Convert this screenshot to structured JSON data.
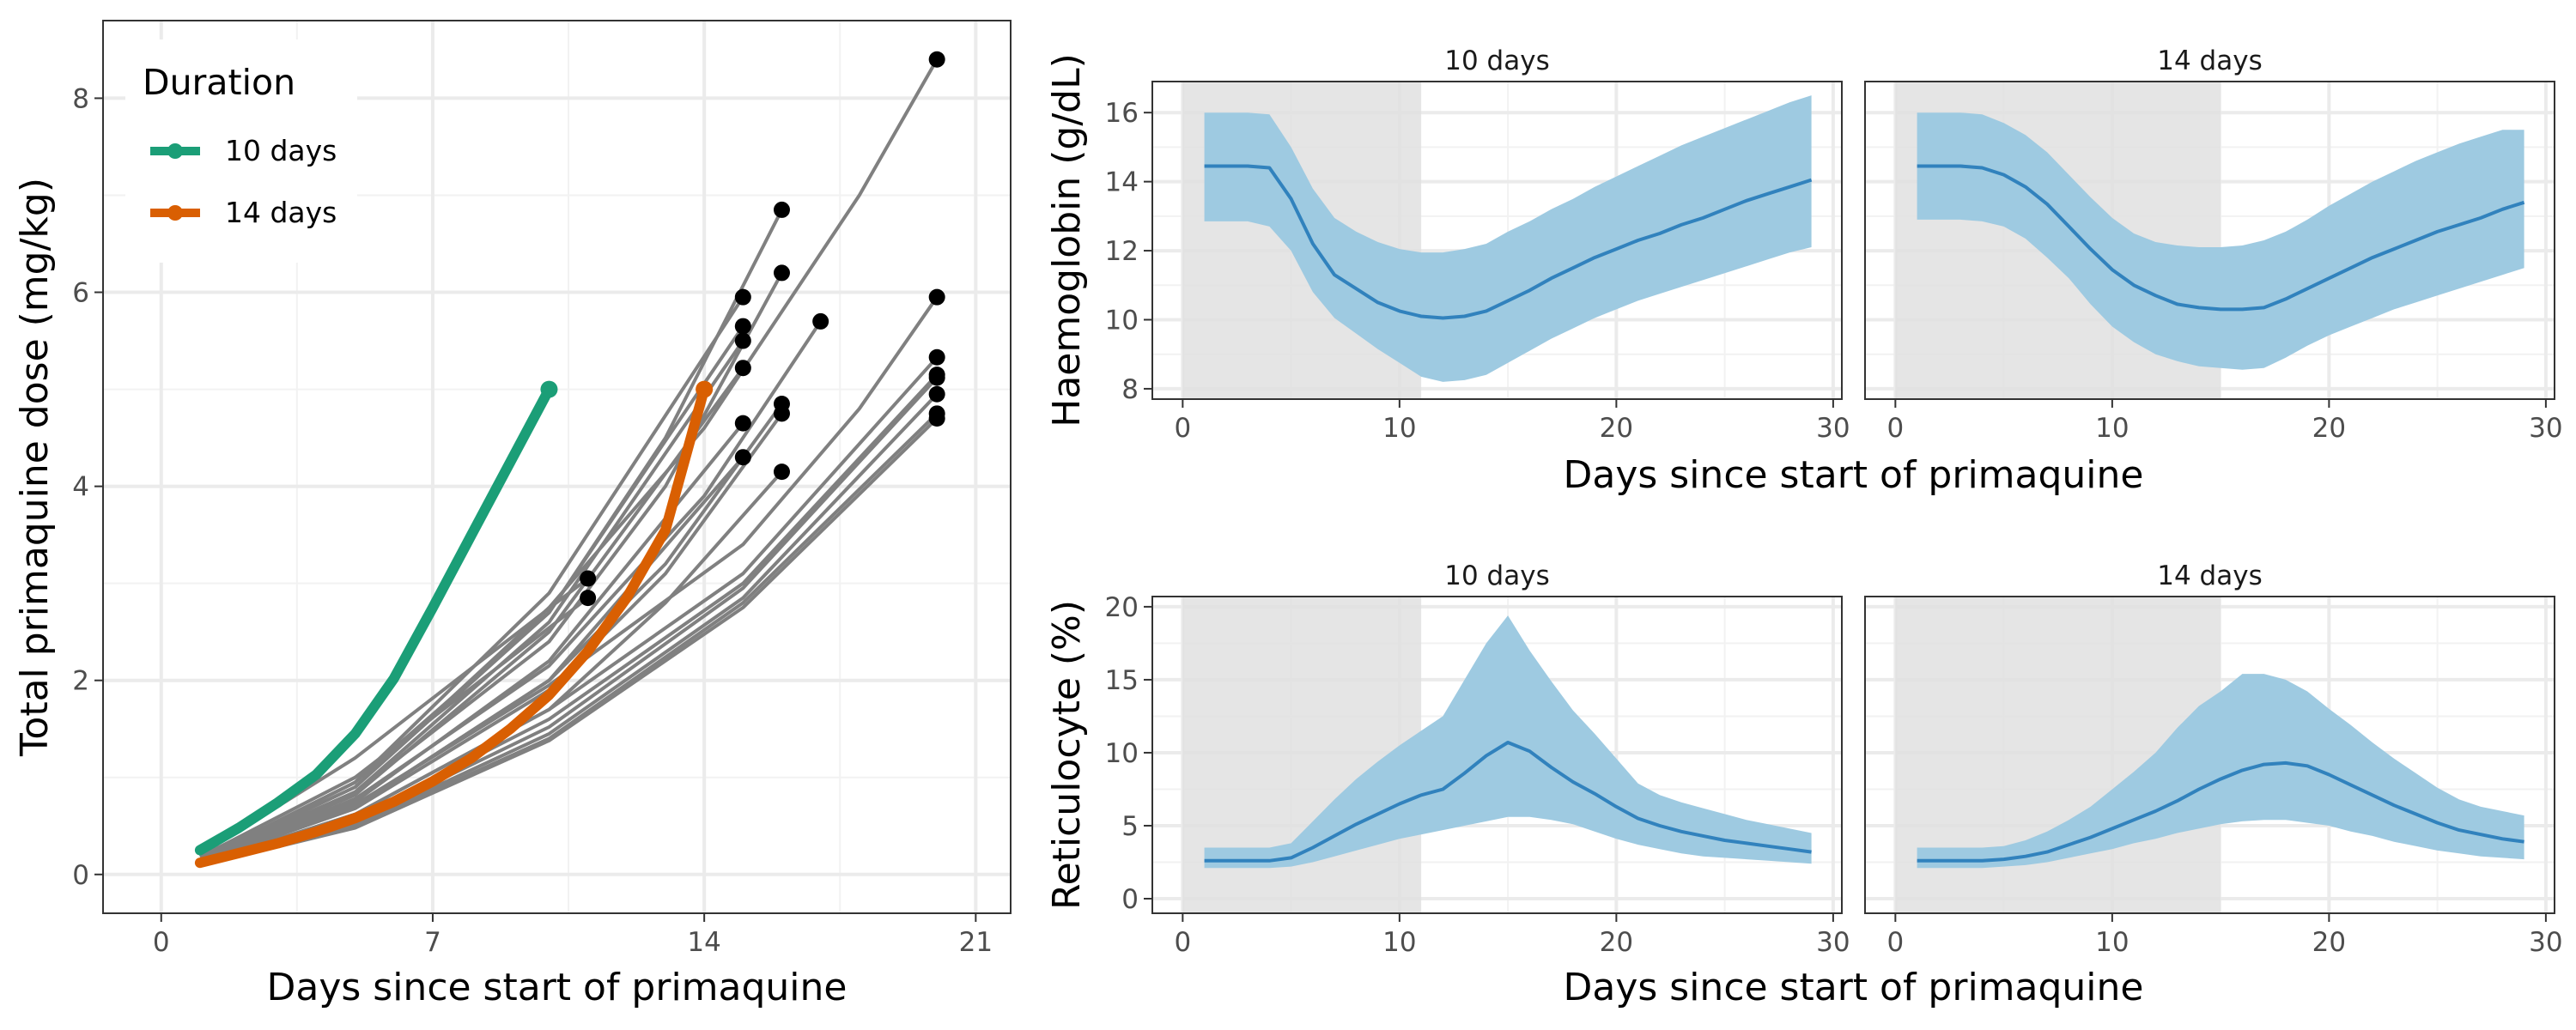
{
  "colors": {
    "series_10": "#1b9e77",
    "series_14": "#d95f02",
    "grey_lines": "#808080",
    "endpoint": "#000000",
    "band": "#9ecae1",
    "median": "#3182bd",
    "shade": "#e0e0e0"
  },
  "chart_data": [
    {
      "type": "line",
      "xlabel": "Days since start of primaquine",
      "ylabel": "Total primaquine dose (mg/kg)",
      "xlim": [
        -1.5,
        21.9
      ],
      "ylim": [
        -0.4,
        8.8
      ],
      "xticks": [
        0,
        7,
        14,
        21
      ],
      "yticks": [
        0,
        2,
        4,
        6,
        8
      ],
      "grid": true,
      "legend": {
        "title": "Duration",
        "position": "top-left"
      },
      "series": [
        {
          "name": "10 days",
          "x": [
            1,
            2,
            3,
            4,
            5,
            6,
            7,
            8,
            9,
            10
          ],
          "y": [
            0.25,
            0.48,
            0.74,
            1.03,
            1.45,
            2.02,
            2.75,
            3.5,
            4.25,
            5.0
          ]
        },
        {
          "name": "14 days",
          "x": [
            1,
            2,
            3,
            4,
            5,
            6,
            7,
            8,
            9,
            10,
            11,
            12,
            13,
            14
          ],
          "y": [
            0.12,
            0.22,
            0.32,
            0.44,
            0.58,
            0.75,
            0.96,
            1.2,
            1.5,
            1.85,
            2.3,
            2.85,
            3.55,
            5.0
          ]
        }
      ],
      "grey_lines": [
        {
          "x": [
            1,
            5,
            11
          ],
          "y": [
            0.2,
            1.2,
            3.05
          ]
        },
        {
          "x": [
            1,
            5,
            11
          ],
          "y": [
            0.18,
            1.0,
            2.85
          ]
        },
        {
          "x": [
            1,
            5,
            10,
            15
          ],
          "y": [
            0.15,
            0.95,
            2.9,
            5.95
          ]
        },
        {
          "x": [
            1,
            5,
            10,
            15
          ],
          "y": [
            0.15,
            0.9,
            2.7,
            5.65
          ]
        },
        {
          "x": [
            1,
            5,
            10,
            15
          ],
          "y": [
            0.14,
            0.85,
            2.6,
            5.5
          ]
        },
        {
          "x": [
            1,
            5,
            10,
            15
          ],
          "y": [
            0.14,
            0.82,
            2.5,
            5.22
          ]
        },
        {
          "x": [
            1,
            5,
            10,
            15
          ],
          "y": [
            0.13,
            0.75,
            2.2,
            4.65
          ]
        },
        {
          "x": [
            1,
            5,
            10,
            15
          ],
          "y": [
            0.12,
            0.7,
            2.0,
            4.3
          ]
        },
        {
          "x": [
            1,
            5,
            10,
            13,
            16
          ],
          "y": [
            0.15,
            0.95,
            2.7,
            4.5,
            6.85
          ]
        },
        {
          "x": [
            1,
            5,
            10,
            13,
            16
          ],
          "y": [
            0.14,
            0.85,
            2.4,
            4.0,
            6.2
          ]
        },
        {
          "x": [
            1,
            5,
            10,
            13,
            16
          ],
          "y": [
            0.12,
            0.7,
            2.0,
            3.2,
            4.85
          ]
        },
        {
          "x": [
            1,
            5,
            10,
            13,
            16
          ],
          "y": [
            0.12,
            0.68,
            1.9,
            3.1,
            4.75
          ]
        },
        {
          "x": [
            1,
            5,
            10,
            13,
            16
          ],
          "y": [
            0.11,
            0.62,
            1.7,
            2.8,
            4.15
          ]
        },
        {
          "x": [
            1,
            5,
            10,
            14,
            17
          ],
          "y": [
            0.13,
            0.78,
            2.15,
            3.9,
            5.7
          ]
        },
        {
          "x": [
            1,
            5,
            10,
            14,
            18,
            20
          ],
          "y": [
            0.15,
            0.9,
            2.75,
            4.6,
            7.0,
            8.4
          ]
        },
        {
          "x": [
            1,
            5,
            10,
            15,
            18,
            20
          ],
          "y": [
            0.12,
            0.72,
            1.95,
            3.4,
            4.8,
            5.95
          ]
        },
        {
          "x": [
            1,
            5,
            10,
            15,
            20
          ],
          "y": [
            0.11,
            0.62,
            1.7,
            3.1,
            5.33
          ]
        },
        {
          "x": [
            1,
            5,
            10,
            15,
            20
          ],
          "y": [
            0.1,
            0.58,
            1.6,
            3.0,
            5.15
          ]
        },
        {
          "x": [
            1,
            5,
            10,
            15,
            20
          ],
          "y": [
            0.1,
            0.55,
            1.52,
            2.95,
            5.12
          ]
        },
        {
          "x": [
            1,
            5,
            10,
            15,
            20
          ],
          "y": [
            0.1,
            0.52,
            1.45,
            2.85,
            4.95
          ]
        },
        {
          "x": [
            1,
            5,
            10,
            15,
            20
          ],
          "y": [
            0.09,
            0.5,
            1.4,
            2.8,
            4.75
          ]
        },
        {
          "x": [
            1,
            5,
            10,
            15,
            20
          ],
          "y": [
            0.09,
            0.48,
            1.38,
            2.75,
            4.7
          ]
        }
      ]
    },
    {
      "type": "area",
      "xlabel": "Days since start of primaquine",
      "ylabel": "Haemoglobin (g/dL)",
      "xlim": [
        -1.4,
        30.4
      ],
      "ylim": [
        7.7,
        16.9
      ],
      "xticks": [
        0,
        10,
        20,
        30
      ],
      "yticks": [
        8,
        10,
        12,
        14,
        16
      ],
      "grid": true,
      "panels": [
        {
          "title": "10 days",
          "shade": [
            0,
            11
          ],
          "x": [
            1,
            2,
            3,
            4,
            5,
            6,
            7,
            8,
            9,
            10,
            11,
            12,
            13,
            14,
            15,
            16,
            17,
            18,
            19,
            20,
            21,
            22,
            23,
            24,
            25,
            26,
            27,
            28,
            29
          ],
          "median": [
            14.45,
            14.45,
            14.45,
            14.4,
            13.5,
            12.2,
            11.3,
            10.9,
            10.5,
            10.25,
            10.1,
            10.05,
            10.1,
            10.25,
            10.55,
            10.85,
            11.2,
            11.5,
            11.8,
            12.05,
            12.3,
            12.5,
            12.75,
            12.95,
            13.2,
            13.45,
            13.65,
            13.85,
            14.05
          ],
          "lower": [
            12.85,
            12.85,
            12.85,
            12.7,
            12.0,
            10.8,
            10.05,
            9.6,
            9.15,
            8.75,
            8.35,
            8.2,
            8.25,
            8.4,
            8.75,
            9.1,
            9.45,
            9.75,
            10.05,
            10.3,
            10.55,
            10.75,
            10.95,
            11.15,
            11.35,
            11.55,
            11.75,
            11.95,
            12.1
          ],
          "upper": [
            16.0,
            16.0,
            16.0,
            15.95,
            15.0,
            13.8,
            12.95,
            12.55,
            12.25,
            12.05,
            11.95,
            11.95,
            12.05,
            12.2,
            12.55,
            12.85,
            13.2,
            13.5,
            13.85,
            14.15,
            14.45,
            14.75,
            15.05,
            15.3,
            15.55,
            15.8,
            16.05,
            16.3,
            16.5
          ]
        },
        {
          "title": "14 days",
          "shade": [
            0,
            15
          ],
          "x": [
            1,
            2,
            3,
            4,
            5,
            6,
            7,
            8,
            9,
            10,
            11,
            12,
            13,
            14,
            15,
            16,
            17,
            18,
            19,
            20,
            21,
            22,
            23,
            24,
            25,
            26,
            27,
            28,
            29
          ],
          "median": [
            14.45,
            14.45,
            14.45,
            14.4,
            14.2,
            13.85,
            13.35,
            12.7,
            12.05,
            11.45,
            11.0,
            10.7,
            10.45,
            10.35,
            10.3,
            10.3,
            10.35,
            10.6,
            10.9,
            11.2,
            11.5,
            11.8,
            12.05,
            12.3,
            12.55,
            12.75,
            12.95,
            13.2,
            13.4
          ],
          "lower": [
            12.9,
            12.9,
            12.9,
            12.85,
            12.7,
            12.35,
            11.8,
            11.2,
            10.45,
            9.8,
            9.35,
            9.0,
            8.8,
            8.65,
            8.6,
            8.55,
            8.6,
            8.9,
            9.25,
            9.55,
            9.8,
            10.05,
            10.3,
            10.5,
            10.7,
            10.9,
            11.1,
            11.3,
            11.5
          ],
          "upper": [
            16.0,
            16.0,
            16.0,
            15.95,
            15.7,
            15.35,
            14.85,
            14.2,
            13.55,
            12.95,
            12.5,
            12.25,
            12.15,
            12.1,
            12.1,
            12.15,
            12.3,
            12.55,
            12.9,
            13.3,
            13.65,
            14.0,
            14.3,
            14.6,
            14.85,
            15.1,
            15.3,
            15.5,
            15.5
          ]
        }
      ]
    },
    {
      "type": "area",
      "xlabel": "Days since start of primaquine",
      "ylabel": "Reticulocyte (%)",
      "xlim": [
        -1.4,
        30.4
      ],
      "ylim": [
        -1.0,
        20.7
      ],
      "xticks": [
        0,
        10,
        20,
        30
      ],
      "yticks": [
        0,
        5,
        10,
        15,
        20
      ],
      "grid": true,
      "panels": [
        {
          "title": "10 days",
          "shade": [
            0,
            11
          ],
          "x": [
            1,
            2,
            3,
            4,
            5,
            6,
            7,
            8,
            9,
            10,
            11,
            12,
            13,
            14,
            15,
            16,
            17,
            18,
            19,
            20,
            21,
            22,
            23,
            24,
            25,
            26,
            27,
            28,
            29
          ],
          "median": [
            2.6,
            2.6,
            2.6,
            2.6,
            2.8,
            3.5,
            4.3,
            5.1,
            5.8,
            6.5,
            7.1,
            7.5,
            8.6,
            9.8,
            10.7,
            10.1,
            9.0,
            8.0,
            7.2,
            6.3,
            5.5,
            5.0,
            4.6,
            4.3,
            4.0,
            3.8,
            3.6,
            3.4,
            3.2
          ],
          "lower": [
            2.1,
            2.1,
            2.1,
            2.1,
            2.2,
            2.5,
            2.9,
            3.3,
            3.7,
            4.1,
            4.4,
            4.7,
            5.0,
            5.3,
            5.6,
            5.6,
            5.4,
            5.1,
            4.6,
            4.1,
            3.7,
            3.4,
            3.1,
            2.9,
            2.8,
            2.7,
            2.6,
            2.5,
            2.4
          ],
          "upper": [
            3.5,
            3.5,
            3.5,
            3.5,
            3.8,
            5.3,
            6.8,
            8.2,
            9.4,
            10.5,
            11.5,
            12.5,
            15.0,
            17.5,
            19.4,
            17.0,
            14.9,
            12.9,
            11.3,
            9.6,
            7.9,
            7.1,
            6.6,
            6.2,
            5.8,
            5.4,
            5.1,
            4.8,
            4.5
          ]
        },
        {
          "title": "14 days",
          "shade": [
            0,
            15
          ],
          "x": [
            1,
            2,
            3,
            4,
            5,
            6,
            7,
            8,
            9,
            10,
            11,
            12,
            13,
            14,
            15,
            16,
            17,
            18,
            19,
            20,
            21,
            22,
            23,
            24,
            25,
            26,
            27,
            28,
            29
          ],
          "median": [
            2.6,
            2.6,
            2.6,
            2.6,
            2.7,
            2.9,
            3.2,
            3.7,
            4.2,
            4.8,
            5.4,
            6.0,
            6.7,
            7.5,
            8.2,
            8.8,
            9.2,
            9.3,
            9.1,
            8.5,
            7.8,
            7.1,
            6.4,
            5.8,
            5.2,
            4.7,
            4.4,
            4.1,
            3.9
          ],
          "lower": [
            2.1,
            2.1,
            2.1,
            2.1,
            2.2,
            2.3,
            2.5,
            2.8,
            3.1,
            3.4,
            3.8,
            4.1,
            4.5,
            4.8,
            5.1,
            5.3,
            5.4,
            5.4,
            5.2,
            5.0,
            4.6,
            4.3,
            3.9,
            3.6,
            3.3,
            3.1,
            2.9,
            2.8,
            2.7
          ],
          "upper": [
            3.5,
            3.5,
            3.5,
            3.5,
            3.6,
            4.0,
            4.6,
            5.4,
            6.3,
            7.5,
            8.7,
            10.0,
            11.7,
            13.2,
            14.2,
            15.4,
            15.4,
            15.0,
            14.2,
            13.0,
            11.9,
            10.7,
            9.6,
            8.6,
            7.6,
            6.8,
            6.3,
            6.0,
            5.7
          ]
        }
      ]
    }
  ]
}
